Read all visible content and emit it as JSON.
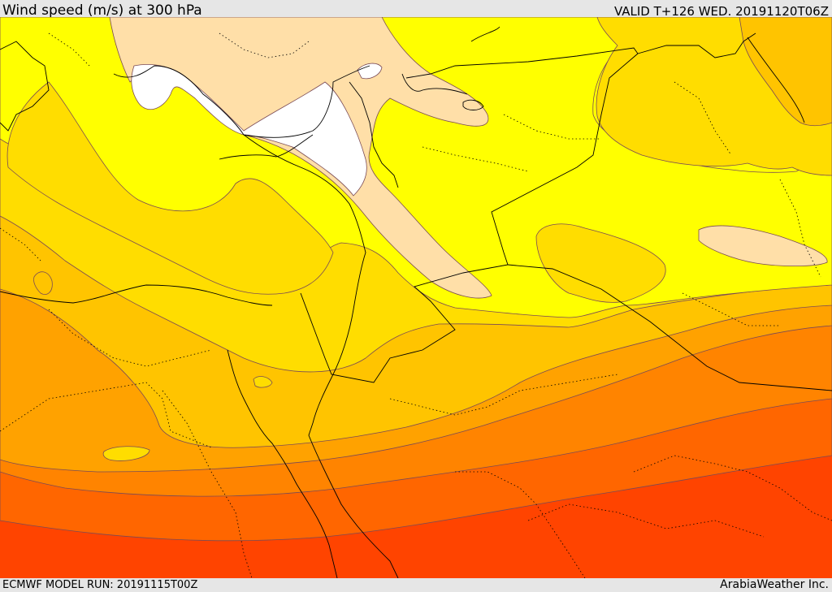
{
  "header": {
    "title": "Wind speed (m/s) at 300 hPa",
    "valid_time": "VALID T+126 WED. 20191120T06Z"
  },
  "footer": {
    "model_run": "ECMWF MODEL RUN: 20191115T00Z",
    "credit": "ArabiaWeather Inc."
  },
  "map": {
    "variable": "wind speed",
    "level": "300 hPa",
    "shading_colors": [
      "#ffffff",
      "#ffdfa8",
      "#ffff00",
      "#ffdd00",
      "#ffc400",
      "#ffa200",
      "#ff8400",
      "#ff6600",
      "#ff4400"
    ]
  }
}
